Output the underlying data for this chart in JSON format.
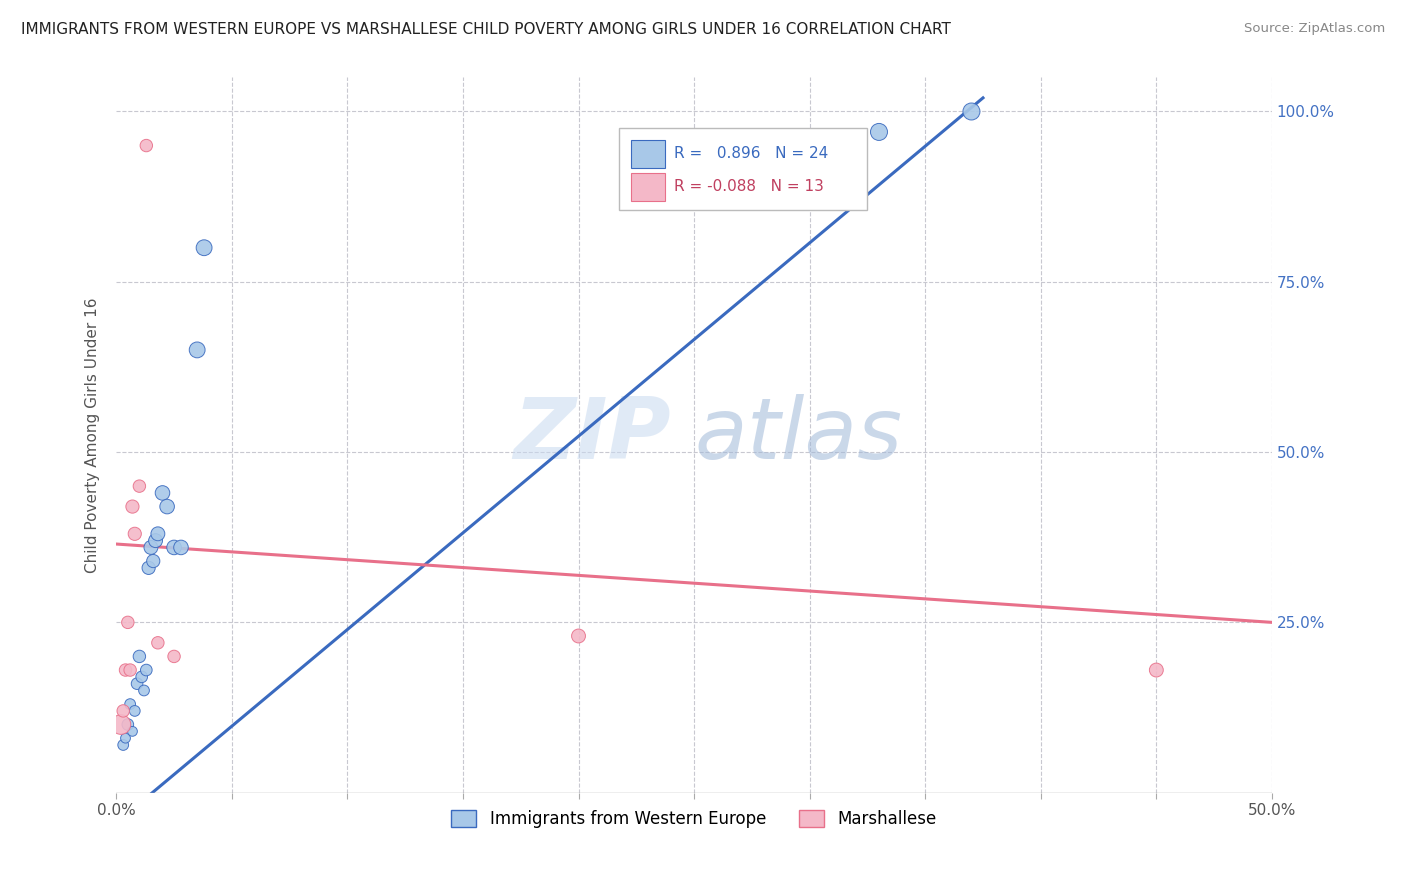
{
  "title": "IMMIGRANTS FROM WESTERN EUROPE VS MARSHALLESE CHILD POVERTY AMONG GIRLS UNDER 16 CORRELATION CHART",
  "source": "Source: ZipAtlas.com",
  "ylabel": "Child Poverty Among Girls Under 16",
  "xlim": [
    0.0,
    0.5
  ],
  "ylim": [
    0.0,
    1.05
  ],
  "blue_R": 0.896,
  "blue_N": 24,
  "pink_R": -0.088,
  "pink_N": 13,
  "blue_color": "#a8c8e8",
  "pink_color": "#f4b8c8",
  "blue_line_color": "#3a6abf",
  "pink_line_color": "#e8708a",
  "watermark_zip": "ZIP",
  "watermark_atlas": "atlas",
  "blue_scatter_x": [
    0.003,
    0.004,
    0.005,
    0.006,
    0.007,
    0.008,
    0.009,
    0.01,
    0.011,
    0.012,
    0.013,
    0.014,
    0.015,
    0.016,
    0.017,
    0.018,
    0.02,
    0.022,
    0.025,
    0.028,
    0.035,
    0.038,
    0.33,
    0.37
  ],
  "blue_scatter_y": [
    0.07,
    0.08,
    0.1,
    0.13,
    0.09,
    0.12,
    0.16,
    0.2,
    0.17,
    0.15,
    0.18,
    0.33,
    0.36,
    0.34,
    0.37,
    0.38,
    0.44,
    0.42,
    0.36,
    0.36,
    0.65,
    0.8,
    0.97,
    1.0
  ],
  "blue_scatter_s": [
    60,
    50,
    70,
    60,
    50,
    60,
    70,
    80,
    70,
    60,
    70,
    90,
    100,
    90,
    100,
    100,
    110,
    110,
    110,
    110,
    130,
    130,
    150,
    150
  ],
  "pink_scatter_x": [
    0.002,
    0.003,
    0.004,
    0.005,
    0.006,
    0.007,
    0.008,
    0.01,
    0.013,
    0.018,
    0.025,
    0.2,
    0.45
  ],
  "pink_scatter_y": [
    0.1,
    0.12,
    0.18,
    0.25,
    0.18,
    0.42,
    0.38,
    0.45,
    0.95,
    0.22,
    0.2,
    0.23,
    0.18
  ],
  "pink_scatter_s": [
    200,
    80,
    80,
    80,
    80,
    90,
    90,
    80,
    80,
    80,
    80,
    100,
    100
  ],
  "blue_line_x": [
    -0.002,
    0.375
  ],
  "blue_line_y": [
    -0.05,
    1.02
  ],
  "pink_line_x": [
    0.0,
    0.5
  ],
  "pink_line_y": [
    0.365,
    0.25
  ],
  "background_color": "#ffffff",
  "grid_color": "#c8c8d0"
}
